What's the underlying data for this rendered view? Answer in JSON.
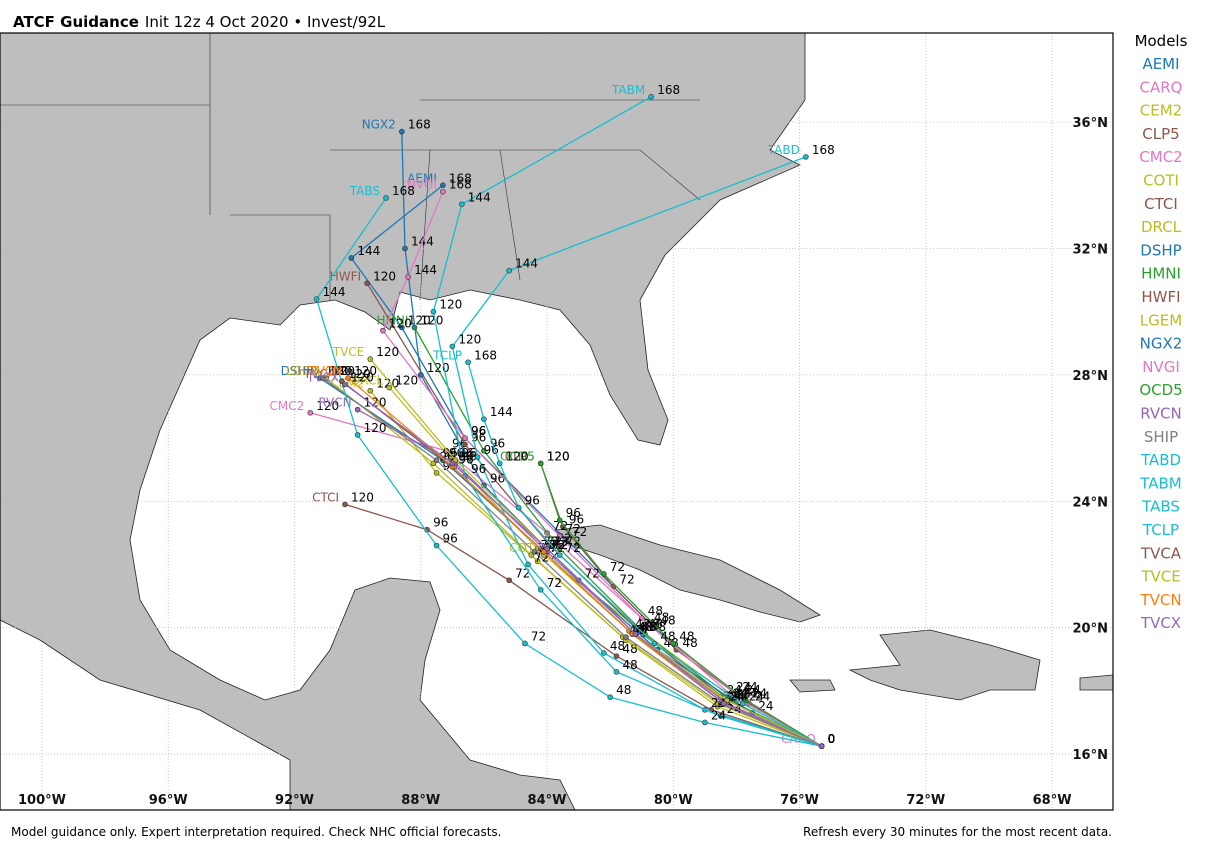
{
  "title": {
    "bold": "ATCF Guidance",
    "rest": "Init 12z 4 Oct 2020 • Invest/92L"
  },
  "legend_title": "Models",
  "footer": {
    "left": "Model guidance only. Expert interpretation required. Check NHC official forecasts.",
    "right": "Refresh every 30 minutes for the most recent data."
  },
  "map": {
    "xlim": [
      -101.33,
      -66.07
    ],
    "ylim": [
      14.23,
      38.82
    ],
    "grid": true,
    "xticks": [
      {
        "value": -100,
        "label": "100°W"
      },
      {
        "value": -96,
        "label": "96°W"
      },
      {
        "value": -92,
        "label": "92°W"
      },
      {
        "value": -88,
        "label": "88°W"
      },
      {
        "value": -84,
        "label": "84°W"
      },
      {
        "value": -80,
        "label": "80°W"
      },
      {
        "value": -76,
        "label": "76°W"
      },
      {
        "value": -72,
        "label": "72°W"
      },
      {
        "value": -68,
        "label": "68°W"
      }
    ],
    "yticks": [
      {
        "value": 16,
        "label": "16°N"
      },
      {
        "value": 20,
        "label": "20°N"
      },
      {
        "value": 24,
        "label": "24°N"
      },
      {
        "value": 28,
        "label": "28°N"
      },
      {
        "value": 32,
        "label": "32°N"
      },
      {
        "value": 36,
        "label": "36°N"
      }
    ]
  },
  "tracks": [
    {
      "name": "AEMI",
      "color": "#1f77b4",
      "lon": [
        -75.3,
        -77.9,
        -80.6,
        -83.4,
        -86.6,
        -88.6,
        -90.2,
        -87.3
      ],
      "lat": [
        16.25,
        17.8,
        20.0,
        22.8,
        26.0,
        29.5,
        31.7,
        34.0
      ],
      "hours": [
        0,
        24,
        48,
        72,
        96,
        120,
        144,
        168
      ]
    },
    {
      "name": "CARQ",
      "color": "#e377c2",
      "lon": [
        -75.3
      ],
      "lat": [
        16.25
      ],
      "hours": [
        0
      ]
    },
    {
      "name": "CEM2",
      "color": "#bcbd22",
      "lon": [
        -75.3,
        -78.6,
        -81.5,
        -84.3,
        -87.5,
        -89.6
      ],
      "lat": [
        16.25,
        17.5,
        19.6,
        22.1,
        24.9,
        27.5
      ],
      "hours": [
        0,
        24,
        48,
        72,
        96,
        120
      ]
    },
    {
      "name": "CLP5",
      "color": "#8c564b",
      "lon": [
        -75.3,
        -77.6,
        -79.9,
        -81.9,
        -83.5,
        -84.2
      ],
      "lat": [
        16.25,
        17.6,
        19.3,
        21.3,
        23.2,
        25.2
      ],
      "hours": [
        0,
        24,
        48,
        72,
        96,
        120
      ]
    },
    {
      "name": "CMC2",
      "color": "#e377c2",
      "lon": [
        -75.3,
        -78.2,
        -81.0,
        -84.0,
        -87.2,
        -91.5
      ],
      "lat": [
        16.25,
        17.9,
        20.3,
        23.0,
        25.6,
        26.8
      ],
      "hours": [
        0,
        24,
        48,
        72,
        96,
        120
      ]
    },
    {
      "name": "COTI",
      "color": "#bcbd22",
      "lon": [
        -75.3,
        -78.0,
        -80.9,
        -84.1
      ],
      "lat": [
        16.25,
        17.7,
        19.8,
        22.3
      ],
      "hours": [
        0,
        24,
        48,
        72
      ]
    },
    {
      "name": "CTCI",
      "color": "#8c564b",
      "lon": [
        -75.3,
        -78.8,
        -81.8,
        -85.2,
        -87.8,
        -90.4
      ],
      "lat": [
        16.25,
        17.4,
        19.1,
        21.5,
        23.1,
        23.9
      ],
      "hours": [
        0,
        24,
        48,
        72,
        96,
        120
      ]
    },
    {
      "name": "DRCL",
      "color": "#bcbd22",
      "lon": [
        -75.3,
        -78.5,
        -81.4,
        -84.3,
        -87.0,
        -89.0
      ],
      "lat": [
        16.25,
        17.8,
        19.9,
        22.5,
        25.3,
        27.6
      ],
      "hours": [
        0,
        24,
        48,
        72,
        96,
        120
      ]
    },
    {
      "name": "DSHP",
      "color": "#1f77b4",
      "lon": [
        -75.3,
        -78.4,
        -81.3,
        -84.2,
        -87.3,
        -91.2
      ],
      "lat": [
        16.25,
        17.6,
        19.8,
        22.5,
        25.3,
        27.9
      ],
      "hours": [
        0,
        24,
        48,
        72,
        96,
        120
      ]
    },
    {
      "name": "HMNI",
      "color": "#2ca02c",
      "lon": [
        -75.3,
        -78.2,
        -81.0,
        -83.6,
        -86.0,
        -88.2
      ],
      "lat": [
        16.25,
        17.7,
        19.9,
        22.5,
        25.6,
        29.5
      ],
      "hours": [
        0,
        24,
        48,
        72,
        96,
        120
      ]
    },
    {
      "name": "HWFI",
      "color": "#8c564b",
      "lon": [
        -75.3,
        -78.3,
        -81.1,
        -83.9,
        -86.6,
        -89.7
      ],
      "lat": [
        16.25,
        17.7,
        19.9,
        22.6,
        25.8,
        30.9
      ],
      "hours": [
        0,
        24,
        48,
        72,
        96,
        120
      ]
    },
    {
      "name": "LGEM",
      "color": "#bcbd22",
      "lon": [
        -75.3,
        -78.6,
        -81.6,
        -84.5,
        -87.6,
        -91.0
      ],
      "lat": [
        16.25,
        17.6,
        19.7,
        22.3,
        25.2,
        27.9
      ],
      "hours": [
        0,
        24,
        48,
        72,
        96,
        120
      ]
    },
    {
      "name": "NGX2",
      "color": "#1f77b4",
      "lon": [
        -75.3,
        -77.5,
        -80.5,
        -83.0,
        -86.0,
        -88.0,
        -88.5,
        -88.6
      ],
      "lat": [
        16.25,
        17.3,
        19.3,
        21.5,
        24.5,
        28.0,
        32.0,
        35.7
      ],
      "hours": [
        0,
        24,
        48,
        72,
        96,
        120,
        144,
        168
      ]
    },
    {
      "name": "NVGI",
      "color": "#e377c2",
      "lon": [
        -75.3,
        -78.0,
        -80.8,
        -83.6,
        -86.6,
        -89.2,
        -88.4,
        -87.3
      ],
      "lat": [
        16.25,
        17.9,
        20.1,
        22.9,
        26.0,
        29.4,
        31.1,
        33.8
      ],
      "hours": [
        0,
        24,
        48,
        72,
        96,
        120,
        144,
        168
      ]
    },
    {
      "name": "OCD5",
      "color": "#2ca02c",
      "lon": [
        -75.3,
        -77.7,
        -80.0,
        -82.2,
        -83.6,
        -84.2
      ],
      "lat": [
        16.25,
        17.7,
        19.5,
        21.7,
        23.4,
        25.2
      ],
      "hours": [
        0,
        24,
        48,
        72,
        96,
        120
      ]
    },
    {
      "name": "RVCN",
      "color": "#9467bd",
      "lon": [
        -75.3,
        -78.3,
        -81.2,
        -84.0,
        -86.9,
        -90.0
      ],
      "lat": [
        16.25,
        17.6,
        19.8,
        22.4,
        25.2,
        26.9
      ],
      "hours": [
        0,
        24,
        48,
        72,
        96,
        120
      ]
    },
    {
      "name": "SHIP",
      "color": "#7f7f7f",
      "lon": [
        -75.3,
        -78.5,
        -81.5,
        -84.4,
        -87.5,
        -91.1
      ],
      "lat": [
        16.25,
        17.6,
        19.7,
        22.4,
        25.3,
        27.9
      ],
      "hours": [
        0,
        24,
        48,
        72,
        96,
        120
      ]
    },
    {
      "name": "TABD",
      "color": "#17becf",
      "lon": [
        -75.3,
        -79.0,
        -82.2,
        -84.6,
        -86.2,
        -87.0,
        -85.2,
        -75.8
      ],
      "lat": [
        16.25,
        17.4,
        19.2,
        22.0,
        25.4,
        28.9,
        31.3,
        34.9
      ],
      "hours": [
        0,
        24,
        48,
        72,
        96,
        120,
        144,
        168
      ]
    },
    {
      "name": "TABM",
      "color": "#17becf",
      "lon": [
        -75.3,
        -78.5,
        -81.8,
        -84.2,
        -86.6,
        -87.6,
        -86.7,
        -80.7
      ],
      "lat": [
        16.25,
        17.2,
        18.6,
        21.2,
        24.8,
        30.0,
        33.4,
        36.8
      ],
      "hours": [
        0,
        24,
        48,
        72,
        96,
        120,
        144,
        168
      ]
    },
    {
      "name": "TABS",
      "color": "#17becf",
      "lon": [
        -75.3,
        -79.0,
        -82.0,
        -84.7,
        -87.5,
        -90.0,
        -91.3,
        -89.1
      ],
      "lat": [
        16.25,
        17.0,
        17.8,
        19.5,
        22.6,
        26.1,
        30.4,
        33.6
      ],
      "hours": [
        0,
        24,
        48,
        72,
        96,
        120,
        144,
        168
      ]
    },
    {
      "name": "TCLP",
      "color": "#17becf",
      "lon": [
        -75.3,
        -77.8,
        -80.6,
        -83.6,
        -84.9,
        -85.5,
        -86.0,
        -86.5
      ],
      "lat": [
        16.25,
        17.6,
        19.5,
        22.3,
        23.8,
        25.2,
        26.6,
        28.4
      ],
      "hours": [
        0,
        24,
        48,
        72,
        96,
        120,
        144,
        168
      ]
    },
    {
      "name": "TVCA",
      "color": "#8c564b",
      "lon": [
        -75.3,
        -78.4,
        -81.3,
        -84.1,
        -87.0,
        -90.5
      ],
      "lat": [
        16.25,
        17.6,
        19.8,
        22.4,
        25.1,
        27.8
      ],
      "hours": [
        0,
        24,
        48,
        72,
        96,
        120
      ]
    },
    {
      "name": "TVCE",
      "color": "#bcbd22",
      "lon": [
        -75.3,
        -78.3,
        -81.2,
        -84.0,
        -86.9,
        -89.6
      ],
      "lat": [
        16.25,
        17.7,
        19.8,
        22.5,
        25.3,
        28.5
      ],
      "hours": [
        0,
        24,
        48,
        72,
        96,
        120
      ]
    },
    {
      "name": "TVCN",
      "color": "#ff7f0e",
      "lon": [
        -75.3,
        -78.4,
        -81.3,
        -84.1,
        -87.0,
        -90.3
      ],
      "lat": [
        16.25,
        17.6,
        19.8,
        22.4,
        25.1,
        27.9
      ],
      "hours": [
        0,
        24,
        48,
        72,
        96,
        120
      ]
    },
    {
      "name": "TVCX",
      "color": "#9467bd",
      "lon": [
        -75.3,
        -78.4,
        -81.2,
        -84.0,
        -87.0,
        -90.4
      ],
      "lat": [
        16.25,
        17.6,
        19.8,
        22.5,
        25.2,
        27.7
      ],
      "hours": [
        0,
        24,
        48,
        72,
        96,
        120
      ]
    }
  ]
}
